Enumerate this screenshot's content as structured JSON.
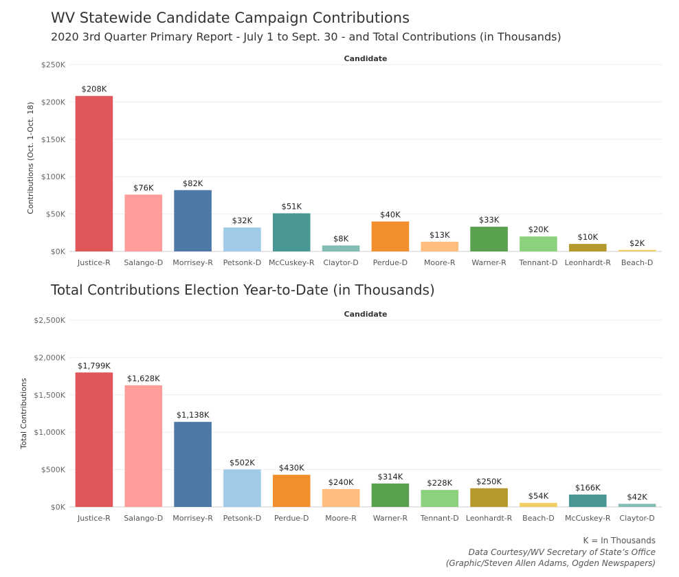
{
  "title": "WV Statewide Candidate Campaign Contributions",
  "subtitle": "2020 3rd Quarter Primary Report - July 1 to Sept. 30 - and Total Contributions (in Thousands)",
  "title2": "Total Contributions Election Year-to-Date (in Thousands)",
  "footer": {
    "note": "K = In Thousands",
    "source": "Data Courtesy/WV Secretary of State’s Office",
    "credit": "(Graphic/Steven Allen Adams, Ogden Newspapers)"
  },
  "chart_data": [
    {
      "type": "bar",
      "header": "Candidate",
      "ylabel": "Contributions (Oct. 1-Oct. 18)",
      "ylim": [
        0,
        250
      ],
      "yticks": [
        0,
        50,
        100,
        150,
        200,
        250
      ],
      "ytick_labels": [
        "$0K",
        "$50K",
        "$100K",
        "$150K",
        "$200K",
        "$250K"
      ],
      "grid": true,
      "categories": [
        "Justice-R",
        "Salango-D",
        "Morrisey-R",
        "Petsonk-D",
        "McCuskey-R",
        "Claytor-D",
        "Perdue-D",
        "Moore-R",
        "Warner-R",
        "Tennant-D",
        "Leonhardt-R",
        "Beach-D"
      ],
      "values": [
        208,
        76,
        82,
        32,
        51,
        8,
        40,
        13,
        33,
        20,
        10,
        2
      ],
      "labels": [
        "$208K",
        "$76K",
        "$82K",
        "$32K",
        "$51K",
        "$8K",
        "$40K",
        "$13K",
        "$33K",
        "$20K",
        "$10K",
        "$2K"
      ],
      "colors": [
        "#e15759",
        "#ff9d9a",
        "#4e79a7",
        "#a0cbe8",
        "#499894",
        "#86bcb6",
        "#f28e2b",
        "#ffbe7d",
        "#59a14f",
        "#8cd17d",
        "#b6992d",
        "#f1ce63"
      ]
    },
    {
      "type": "bar",
      "header": "Candidate",
      "ylabel": "Total Contributions",
      "ylim": [
        0,
        2500
      ],
      "yticks": [
        0,
        500,
        1000,
        1500,
        2000,
        2500
      ],
      "ytick_labels": [
        "$0K",
        "$500K",
        "$1,000K",
        "$1,500K",
        "$2,000K",
        "$2,500K"
      ],
      "grid": true,
      "categories": [
        "Justice-R",
        "Salango-D",
        "Morrisey-R",
        "Petsonk-D",
        "Perdue-D",
        "Moore-R",
        "Warner-R",
        "Tennant-D",
        "Leonhardt-R",
        "Beach-D",
        "McCuskey-R",
        "Claytor-D"
      ],
      "values": [
        1799,
        1628,
        1138,
        502,
        430,
        240,
        314,
        228,
        250,
        54,
        166,
        42
      ],
      "labels": [
        "$1,799K",
        "$1,628K",
        "$1,138K",
        "$502K",
        "$430K",
        "$240K",
        "$314K",
        "$228K",
        "$250K",
        "$54K",
        "$166K",
        "$42K"
      ],
      "colors": [
        "#e15759",
        "#ff9d9a",
        "#4e79a7",
        "#a0cbe8",
        "#f28e2b",
        "#ffbe7d",
        "#59a14f",
        "#8cd17d",
        "#b6992d",
        "#f1ce63",
        "#499894",
        "#86bcb6"
      ]
    }
  ]
}
